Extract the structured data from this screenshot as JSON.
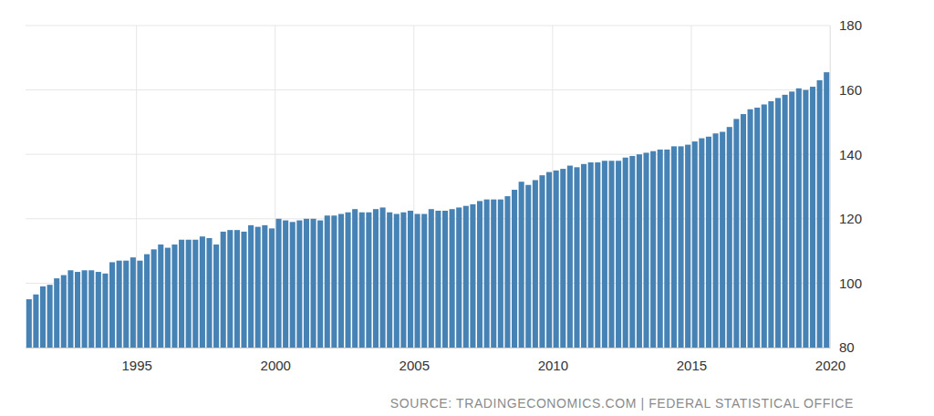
{
  "chart_data": {
    "type": "bar",
    "x": [
      1991,
      1991.25,
      1991.5,
      1991.75,
      1992,
      1992.25,
      1992.5,
      1992.75,
      1993,
      1993.25,
      1993.5,
      1993.75,
      1994,
      1994.25,
      1994.5,
      1994.75,
      1995,
      1995.25,
      1995.5,
      1995.75,
      1996,
      1996.25,
      1996.5,
      1996.75,
      1997,
      1997.25,
      1997.5,
      1997.75,
      1998,
      1998.25,
      1998.5,
      1998.75,
      1999,
      1999.25,
      1999.5,
      1999.75,
      2000,
      2000.25,
      2000.5,
      2000.75,
      2001,
      2001.25,
      2001.5,
      2001.75,
      2002,
      2002.25,
      2002.5,
      2002.75,
      2003,
      2003.25,
      2003.5,
      2003.75,
      2004,
      2004.25,
      2004.5,
      2004.75,
      2005,
      2005.25,
      2005.5,
      2005.75,
      2006,
      2006.25,
      2006.5,
      2006.75,
      2007,
      2007.25,
      2007.5,
      2007.75,
      2008,
      2008.25,
      2008.5,
      2008.75,
      2009,
      2009.25,
      2009.5,
      2009.75,
      2010,
      2010.25,
      2010.5,
      2010.75,
      2011,
      2011.25,
      2011.5,
      2011.75,
      2012,
      2012.25,
      2012.5,
      2012.75,
      2013,
      2013.25,
      2013.5,
      2013.75,
      2014,
      2014.25,
      2014.5,
      2014.75,
      2015,
      2015.25,
      2015.5,
      2015.75,
      2016,
      2016.25,
      2016.5,
      2016.75,
      2017,
      2017.25,
      2017.5,
      2017.75,
      2018,
      2018.25,
      2018.5,
      2018.75,
      2019,
      2019.25,
      2019.5,
      2019.75
    ],
    "values": [
      95,
      96.5,
      99,
      99.5,
      101.5,
      102.5,
      104,
      103.5,
      104,
      104,
      103.5,
      103,
      106.5,
      107,
      107,
      108,
      107,
      109,
      110.5,
      112,
      111,
      112,
      113.5,
      113.5,
      113.5,
      114.5,
      114,
      112,
      116,
      116.5,
      116.5,
      116,
      118,
      117.5,
      118,
      117,
      120,
      119.5,
      119,
      119.5,
      120,
      120,
      119.5,
      121,
      121,
      121.5,
      122,
      123,
      122,
      122,
      123,
      123.5,
      122,
      121.5,
      122,
      122.5,
      121.5,
      121.5,
      123,
      122.5,
      122.5,
      123,
      123.5,
      124,
      124.5,
      125.5,
      126,
      126,
      126,
      127,
      129,
      131.5,
      130.5,
      132,
      133.5,
      134.5,
      135,
      135.5,
      136.5,
      136,
      137,
      137.5,
      137.5,
      138,
      138,
      138,
      139,
      139.5,
      140,
      140.5,
      141,
      141.5,
      141.5,
      142.5,
      142.5,
      143,
      144,
      145,
      145.5,
      146.5,
      147,
      148.5,
      151,
      152.5,
      154,
      154.5,
      155.5,
      156.5,
      157.5,
      158.5,
      159.5,
      160.5,
      160,
      161,
      163,
      165.5
    ],
    "color": "#4682b4",
    "xlim": [
      1991,
      2020
    ],
    "xticks": [
      1995,
      2000,
      2005,
      2010,
      2015,
      2020
    ],
    "ylim": [
      80,
      180
    ],
    "yticks": [
      80,
      100,
      120,
      140,
      160,
      180
    ],
    "grid": true,
    "source": "SOURCE: TRADINGECONOMICS.COM | FEDERAL STATISTICAL OFFICE"
  }
}
